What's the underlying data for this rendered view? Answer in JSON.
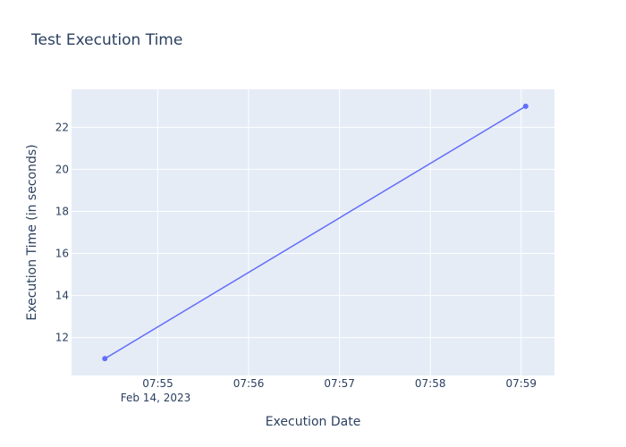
{
  "chart_data": {
    "type": "line",
    "title": "Test Execution Time",
    "xlabel": "Execution Date",
    "ylabel": "Execution Time (in seconds)",
    "x_axis_type": "date",
    "x_date_label": "Feb 14, 2023",
    "xlim": [
      "2023-02-14 07:54:03",
      "2023-02-14 07:59:22"
    ],
    "x_ticks": [
      {
        "value": "2023-02-14 07:55:00",
        "label": "07:55"
      },
      {
        "value": "2023-02-14 07:56:00",
        "label": "07:56"
      },
      {
        "value": "2023-02-14 07:57:00",
        "label": "07:57"
      },
      {
        "value": "2023-02-14 07:58:00",
        "label": "07:58"
      },
      {
        "value": "2023-02-14 07:59:00",
        "label": "07:59"
      }
    ],
    "ylim": [
      10.2,
      23.8
    ],
    "y_ticks": [
      12,
      14,
      16,
      18,
      20,
      22
    ],
    "grid": true,
    "series": [
      {
        "color": "#636efa",
        "mode": "lines+markers",
        "points": [
          {
            "x": "2023-02-14 07:54:25",
            "y": 11
          },
          {
            "x": "2023-02-14 07:59:03",
            "y": 23
          }
        ]
      }
    ],
    "plot_background": "#e5ecf6"
  }
}
